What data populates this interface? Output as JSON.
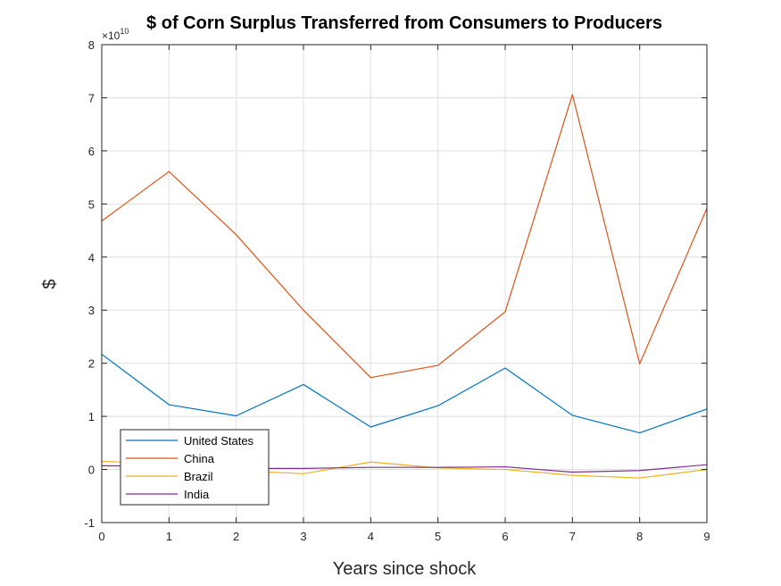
{
  "chart_data": {
    "type": "line",
    "title": "$  of Corn Surplus Transferred from Consumers to Producers",
    "xlabel": "Years since shock",
    "ylabel": "$",
    "y_exponent_base": "×10",
    "y_exponent_power": "10",
    "y_scale_multiplier": 10000000000,
    "xlim": [
      0,
      9
    ],
    "ylim": [
      -1,
      8
    ],
    "grid": true,
    "legend_position": "bottom-left",
    "x": [
      0,
      1,
      2,
      3,
      4,
      5,
      6,
      7,
      8,
      9
    ],
    "xticks": [
      "0",
      "1",
      "2",
      "3",
      "4",
      "5",
      "6",
      "7",
      "8",
      "9"
    ],
    "yticks": [
      "-1",
      "0",
      "1",
      "2",
      "3",
      "4",
      "5",
      "6",
      "7",
      "8"
    ],
    "series": [
      {
        "name": "United States",
        "color": "#0072BD",
        "values": [
          2.17,
          1.22,
          1.01,
          1.6,
          0.8,
          1.2,
          1.91,
          1.02,
          0.69,
          1.14
        ]
      },
      {
        "name": "China",
        "color": "#D95319",
        "values": [
          4.68,
          5.61,
          4.42,
          3.0,
          1.73,
          1.96,
          2.97,
          7.06,
          1.99,
          4.92
        ]
      },
      {
        "name": "Brazil",
        "color": "#EDB120",
        "values": [
          0.15,
          0.12,
          -0.02,
          -0.08,
          0.14,
          0.03,
          0.0,
          -0.11,
          -0.16,
          0.0
        ]
      },
      {
        "name": "India",
        "color": "#7E2F8E",
        "values": [
          0.07,
          0.06,
          0.02,
          0.02,
          0.04,
          0.04,
          0.05,
          -0.05,
          -0.02,
          0.09
        ]
      }
    ]
  }
}
